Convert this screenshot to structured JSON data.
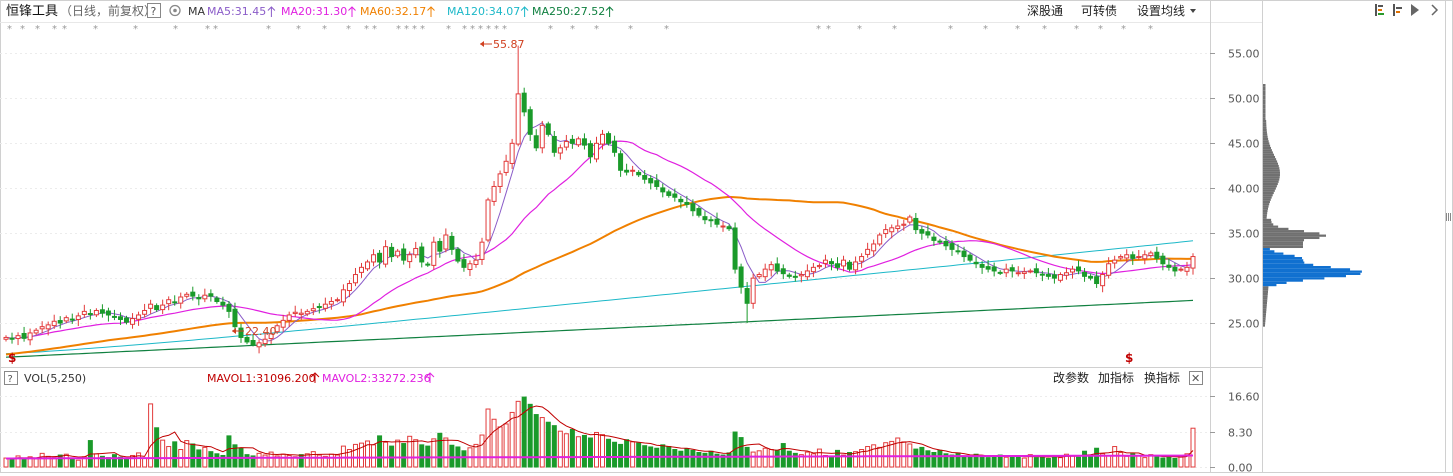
{
  "header": {
    "stock_name": "恒锋工具",
    "mode": "（日线，前复权）",
    "help_icon": "?",
    "ma_label": "MA",
    "ma_values": [
      {
        "text": "MA5:31.45",
        "color": "#8a5cc8"
      },
      {
        "text": "MA20:31.30",
        "color": "#e020e0"
      },
      {
        "text": "MA60:32.17",
        "color": "#f08000"
      },
      {
        "text": "MA120:34.07",
        "color": "#1cb8c8"
      },
      {
        "text": "MA250:27.52",
        "color": "#108040"
      }
    ],
    "buttons": [
      "深股通",
      "可转债",
      "设置均线"
    ]
  },
  "price_axis": {
    "ticks": [
      "55.00",
      "50.00",
      "45.00",
      "40.00",
      "35.00",
      "30.00",
      "25.00"
    ]
  },
  "volume_panel": {
    "label": "VOL(5,250)",
    "mavol1": "MAVOL1:31096.200",
    "mavol2": "MAVOL2:33272.236",
    "buttons": [
      "改参数",
      "加指标",
      "换指标"
    ],
    "close_icon": "✕",
    "ticks": [
      "16.60",
      "8.30",
      "0.00"
    ]
  },
  "annotations": {
    "high": "55.87",
    "low": "22.40",
    "marker": "$"
  },
  "colors": {
    "up": "#e23b3b",
    "down": "#1a9a2a",
    "ma5": "#8a5cc8",
    "ma20": "#e020e0",
    "ma60": "#f08000",
    "ma120": "#1cb8c8",
    "ma250": "#108040",
    "mavol1": "#c00000",
    "mavol2": "#e020e0",
    "profile_grey": "#707070",
    "profile_blue": "#1070d0"
  },
  "chart_data": [
    {
      "type": "candlestick",
      "title": "恒锋工具",
      "ylim": [
        20.0,
        58.5
      ],
      "y_ticks": [
        55,
        50,
        45,
        40,
        35,
        30,
        25
      ],
      "grid": true,
      "high_label": 55.87,
      "low_label": 22.4,
      "closes": [
        23.4,
        23.2,
        23.6,
        23.3,
        23.9,
        24.2,
        24.6,
        24.8,
        25.2,
        25.0,
        25.6,
        25.4,
        25.8,
        26.3,
        26.0,
        26.4,
        26.1,
        25.9,
        25.7,
        25.4,
        25.1,
        25.5,
        25.9,
        26.4,
        27.1,
        26.5,
        27.0,
        27.6,
        27.3,
        27.9,
        28.2,
        28.0,
        27.7,
        28.1,
        28.0,
        27.4,
        27.0,
        26.3,
        24.6,
        23.4,
        22.9,
        22.6,
        22.8,
        23.2,
        23.8,
        24.7,
        25.3,
        25.9,
        26.2,
        26.1,
        26.3,
        26.6,
        26.8,
        27.1,
        27.4,
        27.6,
        28.7,
        29.4,
        30.4,
        31.2,
        31.8,
        32.6,
        31.8,
        33.5,
        32.4,
        33.0,
        32.0,
        32.6,
        33.3,
        31.8,
        31.5,
        34.0,
        33.0,
        34.8,
        33.2,
        31.9,
        31.2,
        31.6,
        32.0,
        34.0,
        38.7,
        40.2,
        41.6,
        43.0,
        45.0,
        50.5,
        48.5,
        46.0,
        44.5,
        47.0,
        46.0,
        44.0,
        44.5,
        45.2,
        45.0,
        45.5,
        44.8,
        43.5,
        45.0,
        46.0,
        45.0,
        44.0,
        42.0,
        41.8,
        42.0,
        41.5,
        41.0,
        40.6,
        40.2,
        39.6,
        39.2,
        39.0,
        38.5,
        38.2,
        37.5,
        37.0,
        36.5,
        36.4,
        36.0,
        35.8,
        35.5,
        31.0,
        29.0,
        27.2,
        30.0,
        30.4,
        31.0,
        31.5,
        30.8,
        30.5,
        30.2,
        30.1,
        30.4,
        30.8,
        31.2,
        31.4,
        32.0,
        31.6,
        31.2,
        32.0,
        31.0,
        31.8,
        32.4,
        33.2,
        33.8,
        34.8,
        35.4,
        35.6,
        35.8,
        36.0,
        36.8,
        35.4,
        35.0,
        34.8,
        34.2,
        34.0,
        33.6,
        33.2,
        33.0,
        32.4,
        32.0,
        31.6,
        31.2,
        31.0,
        30.8,
        30.6,
        31.0,
        30.8,
        30.6,
        30.7,
        30.8,
        30.6,
        30.4,
        30.2,
        30.0,
        30.4,
        30.6,
        31.0,
        30.8,
        30.2,
        30.0,
        29.4,
        30.4,
        31.6,
        32.0,
        32.4,
        32.6,
        32.2,
        32.4,
        32.6,
        32.8,
        32.2,
        31.6,
        31.2,
        30.8,
        31.0,
        31.2,
        32.4
      ],
      "series": [
        {
          "name": "MA5",
          "value": 31.45
        },
        {
          "name": "MA20",
          "value": 31.3
        },
        {
          "name": "MA60",
          "value": 32.17
        },
        {
          "name": "MA120",
          "value": 34.07
        },
        {
          "name": "MA250",
          "value": 27.52
        }
      ]
    },
    {
      "type": "bar",
      "title": "VOL(5,250)",
      "ylim": [
        0,
        19
      ],
      "y_ticks": [
        16.6,
        8.3,
        0.0
      ],
      "series": [
        {
          "name": "MAVOL1",
          "value": 31096.2
        },
        {
          "name": "MAVOL2",
          "value": 33272.236
        }
      ],
      "volumes": [
        2.1,
        1.8,
        2.6,
        2.0,
        2.4,
        1.9,
        3.2,
        2.5,
        2.2,
        2.8,
        3.0,
        2.1,
        1.6,
        2.4,
        6.2,
        3.1,
        2.5,
        2.2,
        2.9,
        2.3,
        2.0,
        2.7,
        3.3,
        2.1,
        14.8,
        9.2,
        6.3,
        4.8,
        5.9,
        4.1,
        6.2,
        5.4,
        4.0,
        4.6,
        3.6,
        3.1,
        2.7,
        7.3,
        5.2,
        4.4,
        2.9,
        2.6,
        3.2,
        2.8,
        3.5,
        2.6,
        3.0,
        2.7,
        2.4,
        2.9,
        3.1,
        3.6,
        2.8,
        2.5,
        3.0,
        2.8,
        4.9,
        4.1,
        5.3,
        5.6,
        6.1,
        5.2,
        7.3,
        5.8,
        4.9,
        6.3,
        5.5,
        7.2,
        6.4,
        5.2,
        4.9,
        6.6,
        7.9,
        6.8,
        5.1,
        4.7,
        3.8,
        4.5,
        5.3,
        7.5,
        13.6,
        11.2,
        9.4,
        10.1,
        12.8,
        15.4,
        16.4,
        14.7,
        12.3,
        11.6,
        10.5,
        9.7,
        8.4,
        7.8,
        8.8,
        7.1,
        7.4,
        6.8,
        8.1,
        7.6,
        6.5,
        5.8,
        5.3,
        6.4,
        5.9,
        5.6,
        5.0,
        4.7,
        4.4,
        5.2,
        4.8,
        4.1,
        3.7,
        4.3,
        3.9,
        3.4,
        3.2,
        3.7,
        3.0,
        2.8,
        3.3,
        8.2,
        6.9,
        4.6,
        3.5,
        3.8,
        4.4,
        4.1,
        3.9,
        5.5,
        3.7,
        3.2,
        2.9,
        3.5,
        3.1,
        4.2,
        2.7,
        2.5,
        3.9,
        2.8,
        3.4,
        3.6,
        4.1,
        4.8,
        5.2,
        4.6,
        5.7,
        6.0,
        6.8,
        5.9,
        5.4,
        4.2,
        4.6,
        3.8,
        3.4,
        3.9,
        3.1,
        2.8,
        3.3,
        2.6,
        2.4,
        3.0,
        2.7,
        2.2,
        2.5,
        2.8,
        2.3,
        2.6,
        2.4,
        2.1,
        2.9,
        2.2,
        2.5,
        2.0,
        2.7,
        2.2,
        3.0,
        2.6,
        2.3,
        3.7,
        2.8,
        4.4,
        3.1,
        2.7,
        4.8,
        3.4,
        2.5,
        3.1,
        2.6,
        2.2,
        2.9,
        2.4,
        2.1,
        2.6,
        2.0,
        2.5,
        3.1,
        9.1
      ]
    }
  ]
}
